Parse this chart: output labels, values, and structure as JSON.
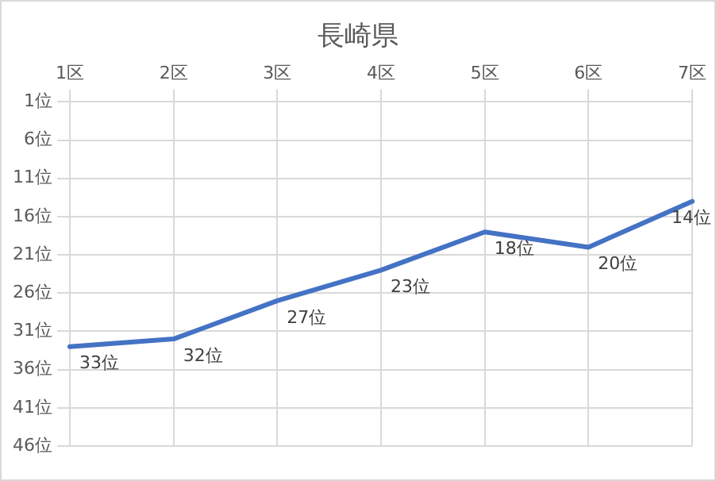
{
  "chart_data": {
    "type": "line",
    "title": "長崎県",
    "categories": [
      "1区",
      "2区",
      "3区",
      "4区",
      "5区",
      "6区",
      "7区"
    ],
    "series": [
      {
        "color": "#4472c4",
        "values": [
          33,
          32,
          27,
          23,
          18,
          20,
          14
        ],
        "value_labels": [
          "33位",
          "32位",
          "27位",
          "23位",
          "18位",
          "20位",
          "14位"
        ]
      }
    ],
    "ylim": [
      46,
      1
    ],
    "yticks": [
      {
        "value": 1,
        "label": "1位"
      },
      {
        "value": 6,
        "label": "6位"
      },
      {
        "value": 11,
        "label": "11位"
      },
      {
        "value": 16,
        "label": "16位"
      },
      {
        "value": 21,
        "label": "21位"
      },
      {
        "value": 26,
        "label": "26位"
      },
      {
        "value": 31,
        "label": "31位"
      },
      {
        "value": 36,
        "label": "36位"
      },
      {
        "value": 41,
        "label": "41位"
      },
      {
        "value": 46,
        "label": "46位"
      }
    ],
    "grid": true,
    "legend": false,
    "marker": "none",
    "line_style": "solid"
  }
}
